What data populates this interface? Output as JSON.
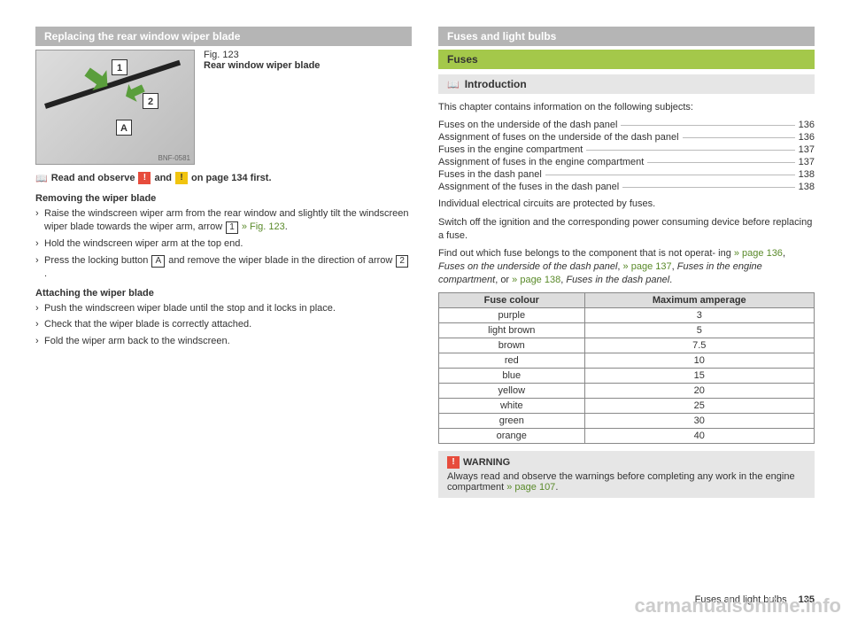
{
  "left": {
    "section_title": "Replacing the rear window wiper blade",
    "fig": {
      "number": "Fig. 123",
      "title": "Rear window wiper blade",
      "label1": "1",
      "label2": "2",
      "labelA": "A",
      "code": "BNF-0581"
    },
    "read_observe": {
      "prefix": "Read and observe",
      "suffix": "on page 134 first.",
      "and": "and",
      "warn_icon": "!",
      "caution_icon": "!"
    },
    "removing_head": "Removing the wiper blade",
    "removing_steps": {
      "s1a": "Raise the windscreen wiper arm from the rear window and slightly tilt the windscreen wiper blade towards the wiper arm, arrow ",
      "s1_box": "1",
      "s1_ref": " » Fig. 123",
      "s1_end": ".",
      "s2": "Hold the windscreen wiper arm at the top end.",
      "s3a": "Press the locking button ",
      "s3_box": "A",
      "s3b": " and remove the wiper blade in the direction of arrow ",
      "s3_box2": "2",
      "s3_end": "."
    },
    "attaching_head": "Attaching the wiper blade",
    "attaching_steps": {
      "s1": "Push the windscreen wiper blade until the stop and it locks in place.",
      "s2": "Check that the wiper blade is correctly attached.",
      "s3": "Fold the wiper arm back to the windscreen."
    }
  },
  "right": {
    "main_title": "Fuses and light bulbs",
    "sub_title": "Fuses",
    "intro_label": "Introduction",
    "intro_text": "This chapter contains information on the following subjects:",
    "toc": [
      {
        "label": "Fuses on the underside of the dash panel",
        "page": "136"
      },
      {
        "label": "Assignment of fuses on the underside of the dash panel",
        "page": "136"
      },
      {
        "label": "Fuses in the engine compartment",
        "page": "137"
      },
      {
        "label": "Assignment of fuses in the engine compartment",
        "page": "137"
      },
      {
        "label": "Fuses in the dash panel",
        "page": "138"
      },
      {
        "label": "Assignment of the fuses in the dash panel",
        "page": "138"
      }
    ],
    "body1": "Individual electrical circuits are protected by fuses.",
    "body2": "Switch off the ignition and the corresponding power consuming device before replacing a fuse.",
    "body3a": "Find out which fuse belongs to the component that is not operat-\ning ",
    "body3_ref1": "» page 136",
    "body3b": ", ",
    "body3_it1": "Fuses on the underside of the dash panel",
    "body3c": ", ",
    "body3_ref2": "» page 137",
    "body3d": ", ",
    "body3_it2": "Fuses in the engine compartment",
    "body3e": ", or ",
    "body3_ref3": "» page 138",
    "body3f": ", ",
    "body3_it3": "Fuses in the dash panel",
    "body3g": ".",
    "table": {
      "head_colour": "Fuse colour",
      "head_amp": "Maximum amperage",
      "rows": [
        {
          "colour": "purple",
          "amp": "3"
        },
        {
          "colour": "light brown",
          "amp": "5"
        },
        {
          "colour": "brown",
          "amp": "7.5"
        },
        {
          "colour": "red",
          "amp": "10"
        },
        {
          "colour": "blue",
          "amp": "15"
        },
        {
          "colour": "yellow",
          "amp": "20"
        },
        {
          "colour": "white",
          "amp": "25"
        },
        {
          "colour": "green",
          "amp": "30"
        },
        {
          "colour": "orange",
          "amp": "40"
        }
      ]
    },
    "warning": {
      "label": "WARNING",
      "icon": "!",
      "text_a": "Always read and observe the warnings before completing any work in the engine compartment ",
      "ref": "» page 107",
      "text_b": "."
    }
  },
  "footer": {
    "section": "Fuses and light bulbs",
    "page": "135"
  },
  "watermark": "carmanualsonline.info"
}
